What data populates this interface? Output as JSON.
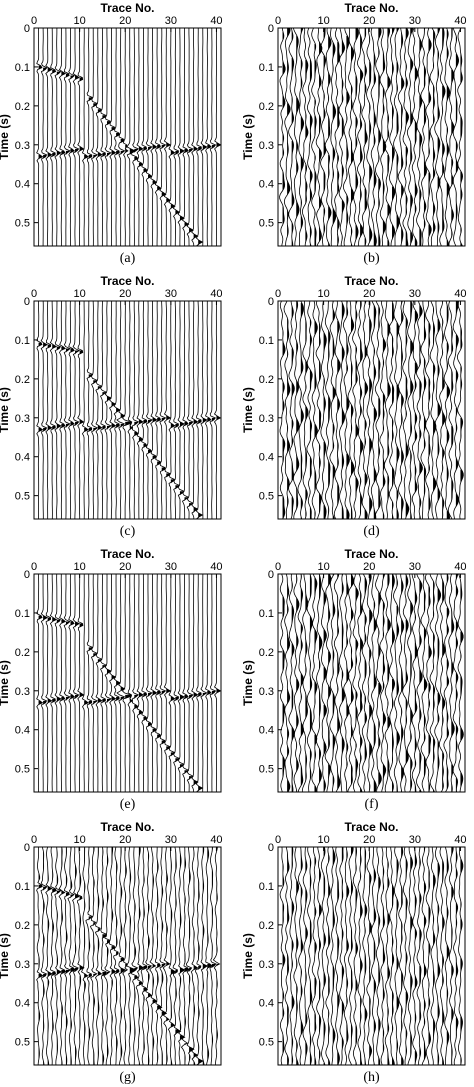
{
  "figure": {
    "xlabel": "Trace No.",
    "ylabel": "Time (s)",
    "xticks": [
      "0",
      "10",
      "20",
      "30",
      "40"
    ],
    "yticks": [
      "0",
      "0.1",
      "0.2",
      "0.3",
      "0.4",
      "0.5"
    ]
  },
  "chart_data": [
    {
      "type": "line",
      "panel": "(a)",
      "caption": "(a)",
      "content": "seismic-wiggle",
      "xlabel": "Trace No.",
      "ylabel": "Time (s)",
      "xlim": [
        0,
        41
      ],
      "ylim": [
        0.56,
        0
      ],
      "traces": 40,
      "noise": 0.05,
      "events": [
        {
          "from": [
            1,
            0.1
          ],
          "to": [
            10,
            0.13
          ]
        },
        {
          "from": [
            12,
            0.18
          ],
          "to": [
            36,
            0.55
          ]
        },
        {
          "from": [
            1,
            0.33
          ],
          "to": [
            10,
            0.31
          ]
        },
        {
          "from": [
            11,
            0.33
          ],
          "to": [
            29,
            0.3
          ]
        },
        {
          "from": [
            30,
            0.32
          ],
          "to": [
            40,
            0.3
          ]
        }
      ]
    },
    {
      "type": "line",
      "panel": "(b)",
      "caption": "(b)",
      "content": "seismic-wiggle-noise",
      "xlabel": "Trace No.",
      "ylabel": "Time (s)",
      "xlim": [
        0,
        41
      ],
      "ylim": [
        0.56,
        0
      ],
      "traces": 40,
      "noise": 1.0,
      "events": []
    },
    {
      "type": "line",
      "panel": "(c)",
      "caption": "(c)",
      "content": "seismic-wiggle",
      "xlabel": "Trace No.",
      "ylabel": "Time (s)",
      "xlim": [
        0,
        41
      ],
      "ylim": [
        0.56,
        0
      ],
      "traces": 40,
      "noise": 0.08,
      "events": [
        {
          "from": [
            1,
            0.11
          ],
          "to": [
            10,
            0.13
          ]
        },
        {
          "from": [
            12,
            0.19
          ],
          "to": [
            36,
            0.55
          ]
        },
        {
          "from": [
            1,
            0.33
          ],
          "to": [
            10,
            0.31
          ]
        },
        {
          "from": [
            11,
            0.33
          ],
          "to": [
            29,
            0.3
          ]
        },
        {
          "from": [
            30,
            0.32
          ],
          "to": [
            40,
            0.3
          ]
        }
      ]
    },
    {
      "type": "line",
      "panel": "(d)",
      "caption": "(d)",
      "content": "seismic-wiggle-noise",
      "xlabel": "Trace No.",
      "ylabel": "Time (s)",
      "xlim": [
        0,
        41
      ],
      "ylim": [
        0.56,
        0
      ],
      "traces": 40,
      "noise": 1.0,
      "events": []
    },
    {
      "type": "line",
      "panel": "(e)",
      "caption": "(e)",
      "content": "seismic-wiggle",
      "xlabel": "Trace No.",
      "ylabel": "Time (s)",
      "xlim": [
        0,
        41
      ],
      "ylim": [
        0.56,
        0
      ],
      "traces": 40,
      "noise": 0.05,
      "events": [
        {
          "from": [
            1,
            0.11
          ],
          "to": [
            10,
            0.13
          ]
        },
        {
          "from": [
            12,
            0.19
          ],
          "to": [
            36,
            0.55
          ]
        },
        {
          "from": [
            1,
            0.33
          ],
          "to": [
            10,
            0.31
          ]
        },
        {
          "from": [
            11,
            0.33
          ],
          "to": [
            29,
            0.3
          ]
        },
        {
          "from": [
            30,
            0.32
          ],
          "to": [
            40,
            0.3
          ]
        }
      ]
    },
    {
      "type": "line",
      "panel": "(f)",
      "caption": "(f)",
      "content": "seismic-wiggle-noise",
      "xlabel": "Trace No.",
      "ylabel": "Time (s)",
      "xlim": [
        0,
        41
      ],
      "ylim": [
        0.56,
        0
      ],
      "traces": 40,
      "noise": 1.0,
      "events": []
    },
    {
      "type": "line",
      "panel": "(g)",
      "caption": "(g)",
      "content": "seismic-wiggle",
      "xlabel": "Trace No.",
      "ylabel": "Time (s)",
      "xlim": [
        0,
        41
      ],
      "ylim": [
        0.56,
        0
      ],
      "traces": 40,
      "noise": 0.45,
      "events": [
        {
          "from": [
            1,
            0.1
          ],
          "to": [
            10,
            0.13
          ]
        },
        {
          "from": [
            12,
            0.18
          ],
          "to": [
            36,
            0.55
          ]
        },
        {
          "from": [
            1,
            0.33
          ],
          "to": [
            10,
            0.31
          ]
        },
        {
          "from": [
            11,
            0.33
          ],
          "to": [
            29,
            0.3
          ]
        },
        {
          "from": [
            30,
            0.32
          ],
          "to": [
            40,
            0.3
          ]
        }
      ]
    },
    {
      "type": "line",
      "panel": "(h)",
      "caption": "(h)",
      "content": "seismic-wiggle-noise",
      "xlabel": "Trace No.",
      "ylabel": "Time (s)",
      "xlim": [
        0,
        41
      ],
      "ylim": [
        0.56,
        0
      ],
      "traces": 40,
      "noise": 0.8,
      "events": []
    }
  ]
}
